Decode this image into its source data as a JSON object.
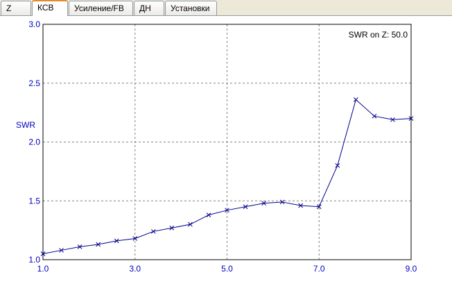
{
  "tabs": [
    {
      "label": "Z",
      "active": false
    },
    {
      "label": "КСВ",
      "active": true
    },
    {
      "label": "Усиление/FB",
      "active": false
    },
    {
      "label": "ДН",
      "active": false
    },
    {
      "label": "Установки",
      "active": false
    }
  ],
  "colors": {
    "series": "#00008b",
    "axis_text": "#0000c0",
    "grid": "#808080"
  },
  "chart_data": {
    "type": "line",
    "title": "",
    "annotation": "SWR on Z: 50.0",
    "xlabel": "",
    "ylabel": "SWR",
    "xlim": [
      1.0,
      9.0
    ],
    "ylim": [
      1.0,
      3.0
    ],
    "x_ticks": [
      "1.0",
      "3.0",
      "5.0",
      "7.0",
      "9.0"
    ],
    "y_ticks": [
      "1.0",
      "1.5",
      "2.0",
      "2.5",
      "3.0"
    ],
    "grid": true,
    "marker": "x",
    "series": [
      {
        "x": [
          1.0,
          1.4,
          1.8,
          2.2,
          2.6,
          3.0,
          3.4,
          3.8,
          4.2,
          4.6,
          5.0,
          5.4,
          5.8,
          6.2,
          6.6,
          7.0,
          7.4,
          7.8,
          8.2,
          8.6,
          9.0
        ],
        "values": [
          1.05,
          1.08,
          1.11,
          1.13,
          1.16,
          1.18,
          1.24,
          1.27,
          1.3,
          1.38,
          1.42,
          1.45,
          1.48,
          1.49,
          1.46,
          1.45,
          1.8,
          2.36,
          2.22,
          2.19,
          2.2
        ]
      }
    ]
  }
}
